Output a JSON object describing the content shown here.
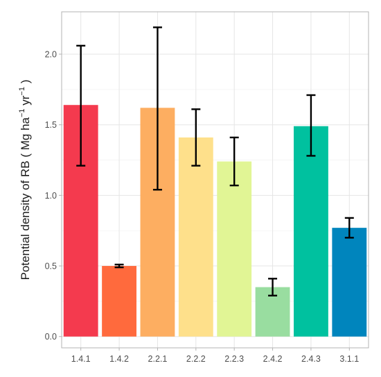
{
  "chart_data": {
    "type": "bar",
    "title": "",
    "xlabel": "",
    "ylabel": {
      "prefix": "Potential density of RB ( Mg ha",
      "sup1": "−1",
      "middle": " yr",
      "sup2": "−1",
      "suffix": " )"
    },
    "ylim": [
      -0.08,
      2.3
    ],
    "yticks": [
      0.0,
      0.5,
      1.0,
      1.5,
      2.0
    ],
    "ytick_labels": [
      "0.0",
      "0.5",
      "1.0",
      "1.5",
      "2.0"
    ],
    "grid": true,
    "legend": "none",
    "categories": [
      "1.4.1",
      "1.4.2",
      "2.2.1",
      "2.2.2",
      "2.2.3",
      "2.4.2",
      "2.4.3",
      "3.1.1"
    ],
    "values": [
      1.64,
      0.5,
      1.62,
      1.41,
      1.24,
      0.35,
      1.49,
      0.77
    ],
    "error_low": [
      1.21,
      0.49,
      1.04,
      1.21,
      1.07,
      0.29,
      1.28,
      0.7
    ],
    "error_high": [
      2.06,
      0.51,
      2.19,
      1.61,
      1.41,
      0.41,
      1.71,
      0.84
    ],
    "colors": [
      "#F43A4E",
      "#FF6A3D",
      "#FDAE61",
      "#FEE08B",
      "#E1F595",
      "#99DDA0",
      "#00C19F",
      "#0085BD"
    ]
  }
}
